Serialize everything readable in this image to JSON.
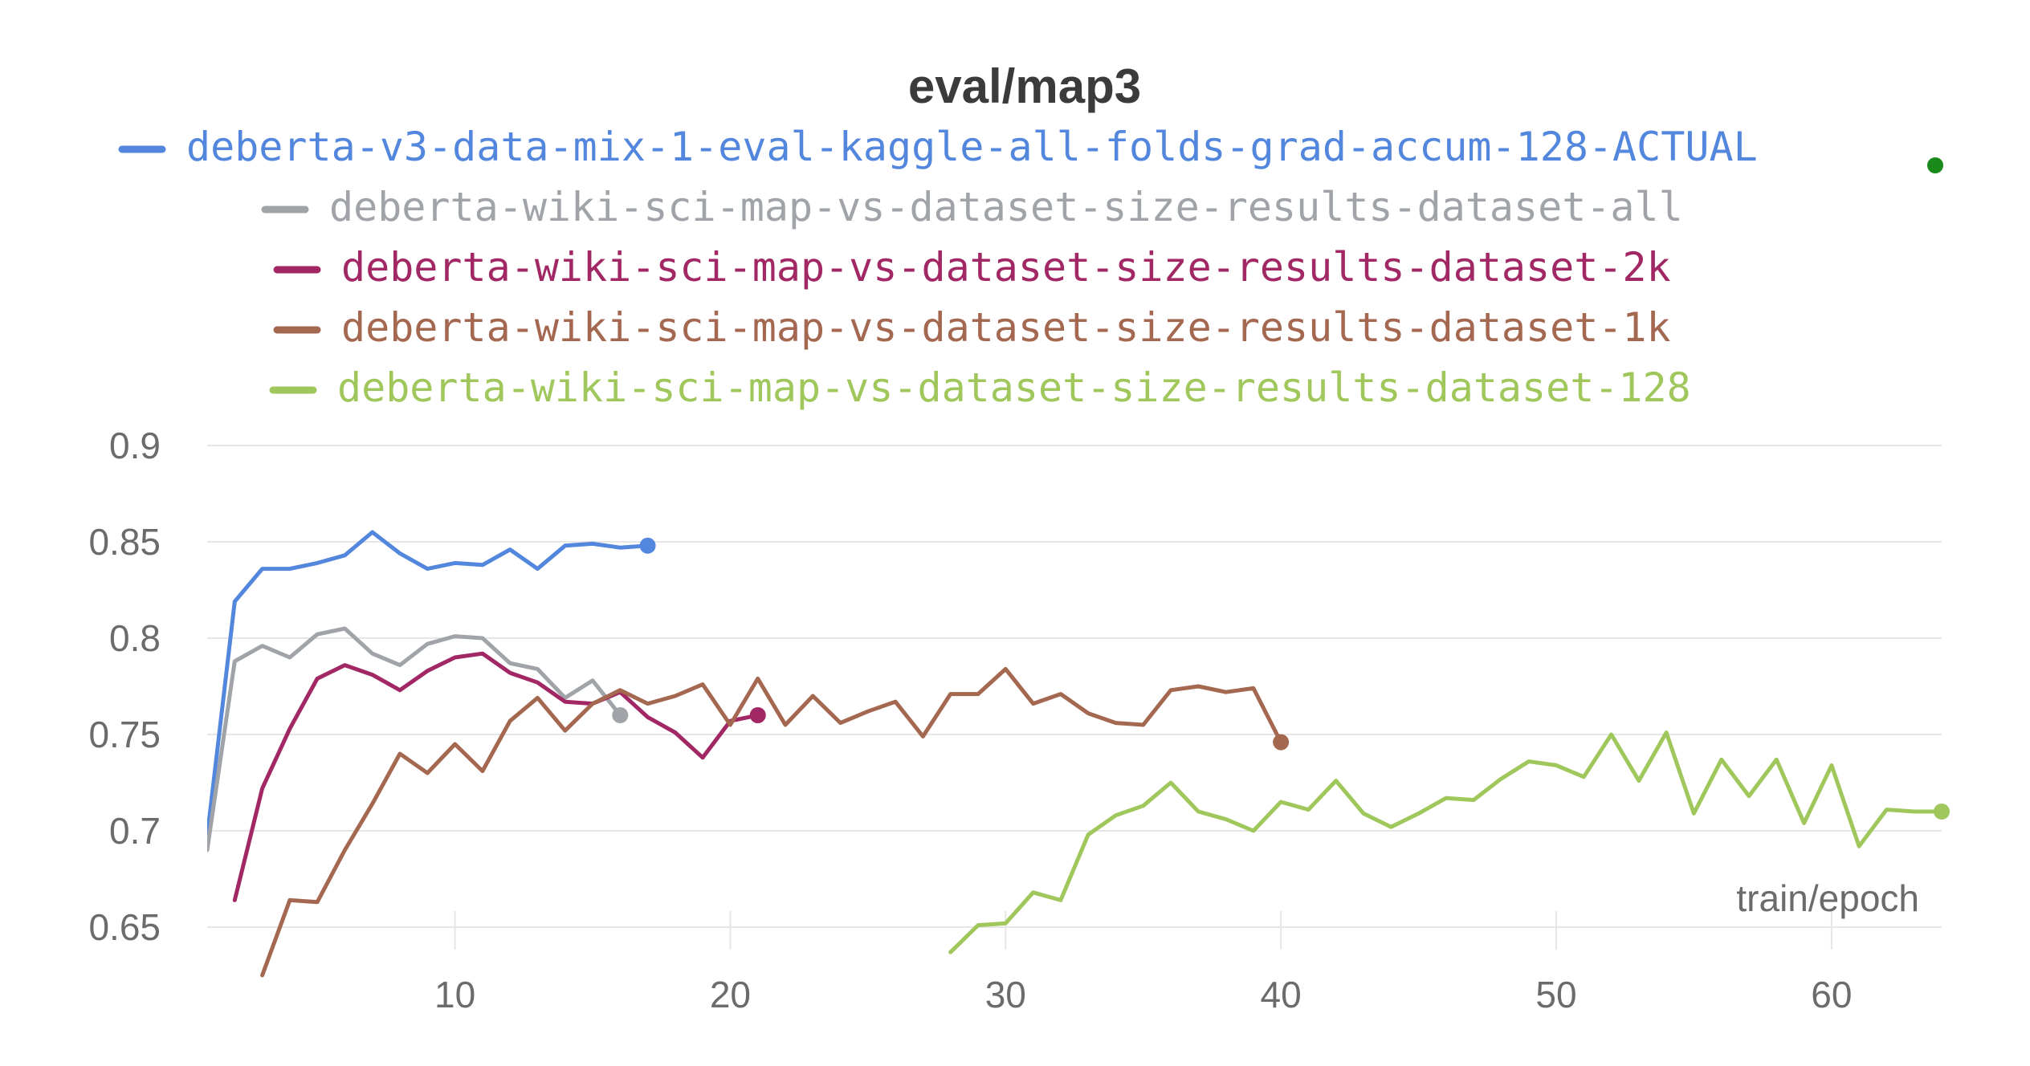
{
  "chart_data": {
    "type": "line",
    "title": "eval/map3",
    "xlabel": "train/epoch",
    "ylabel": "",
    "xlim": [
      1,
      64
    ],
    "ylim": [
      0.625,
      0.9
    ],
    "x_ticks": [
      10,
      20,
      30,
      40,
      50,
      60
    ],
    "y_ticks": [
      0.65,
      0.7,
      0.75,
      0.8,
      0.85,
      0.9
    ],
    "grid": true,
    "legend_position": "top",
    "series": [
      {
        "name": "deberta-v3-data-mix-1-eval-kaggle-all-folds-grad-accum-128-ACTUAL",
        "color": "#5387dd",
        "x": [
          1,
          2,
          3,
          4,
          5,
          6,
          7,
          8,
          9,
          10,
          11,
          12,
          13,
          14,
          15,
          16,
          17
        ],
        "y": [
          0.697,
          0.819,
          0.836,
          0.836,
          0.839,
          0.843,
          0.855,
          0.844,
          0.836,
          0.839,
          0.838,
          0.846,
          0.836,
          0.848,
          0.849,
          0.847,
          0.848
        ]
      },
      {
        "name": "deberta-wiki-sci-map-vs-dataset-size-results-dataset-all",
        "color": "#a0a4a8",
        "x": [
          1,
          2,
          3,
          4,
          5,
          6,
          7,
          8,
          9,
          10,
          11,
          12,
          13,
          14,
          15,
          16
        ],
        "y": [
          0.69,
          0.788,
          0.796,
          0.79,
          0.802,
          0.805,
          0.792,
          0.786,
          0.797,
          0.801,
          0.8,
          0.787,
          0.784,
          0.769,
          0.778,
          0.76
        ]
      },
      {
        "name": "deberta-wiki-sci-map-vs-dataset-size-results-dataset-2k",
        "color": "#a12864",
        "x": [
          2,
          3,
          4,
          5,
          6,
          7,
          8,
          9,
          10,
          11,
          12,
          13,
          14,
          15,
          16,
          17,
          18,
          19,
          20,
          21
        ],
        "y": [
          0.664,
          0.722,
          0.753,
          0.779,
          0.786,
          0.781,
          0.773,
          0.783,
          0.79,
          0.792,
          0.782,
          0.777,
          0.767,
          0.766,
          0.772,
          0.759,
          0.751,
          0.738,
          0.757,
          0.76
        ]
      },
      {
        "name": "deberta-wiki-sci-map-vs-dataset-size-results-dataset-1k",
        "color": "#a46750",
        "x": [
          3,
          4,
          5,
          6,
          7,
          8,
          9,
          10,
          11,
          12,
          13,
          14,
          15,
          16,
          17,
          18,
          19,
          20,
          21,
          22,
          23,
          24,
          25,
          26,
          27,
          28,
          29,
          30,
          31,
          32,
          33,
          34,
          35,
          36,
          37,
          38,
          39,
          40
        ],
        "y": [
          0.625,
          0.664,
          0.663,
          0.69,
          0.714,
          0.74,
          0.73,
          0.745,
          0.731,
          0.757,
          0.769,
          0.752,
          0.766,
          0.773,
          0.766,
          0.77,
          0.776,
          0.755,
          0.779,
          0.755,
          0.77,
          0.756,
          0.762,
          0.767,
          0.749,
          0.771,
          0.771,
          0.784,
          0.766,
          0.771,
          0.761,
          0.756,
          0.755,
          0.773,
          0.775,
          0.772,
          0.774,
          0.746
        ]
      },
      {
        "name": "deberta-wiki-sci-map-vs-dataset-size-results-dataset-128",
        "color": "#a0c75c",
        "x": [
          28,
          29,
          30,
          31,
          32,
          33,
          34,
          35,
          36,
          37,
          38,
          39,
          40,
          41,
          42,
          43,
          44,
          45,
          46,
          47,
          48,
          49,
          50,
          51,
          52,
          53,
          54,
          55,
          56,
          57,
          58,
          59,
          60,
          61,
          62,
          63,
          64
        ],
        "y": [
          0.637,
          0.651,
          0.652,
          0.668,
          0.664,
          0.698,
          0.708,
          0.713,
          0.725,
          0.71,
          0.706,
          0.7,
          0.715,
          0.711,
          0.726,
          0.709,
          0.702,
          0.709,
          0.717,
          0.716,
          0.727,
          0.736,
          0.734,
          0.728,
          0.75,
          0.726,
          0.751,
          0.709,
          0.737,
          0.718,
          0.737,
          0.704,
          0.734,
          0.692,
          0.711,
          0.71,
          0.71
        ]
      }
    ]
  },
  "legend_marker": {
    "color": "#1a8a1a"
  }
}
